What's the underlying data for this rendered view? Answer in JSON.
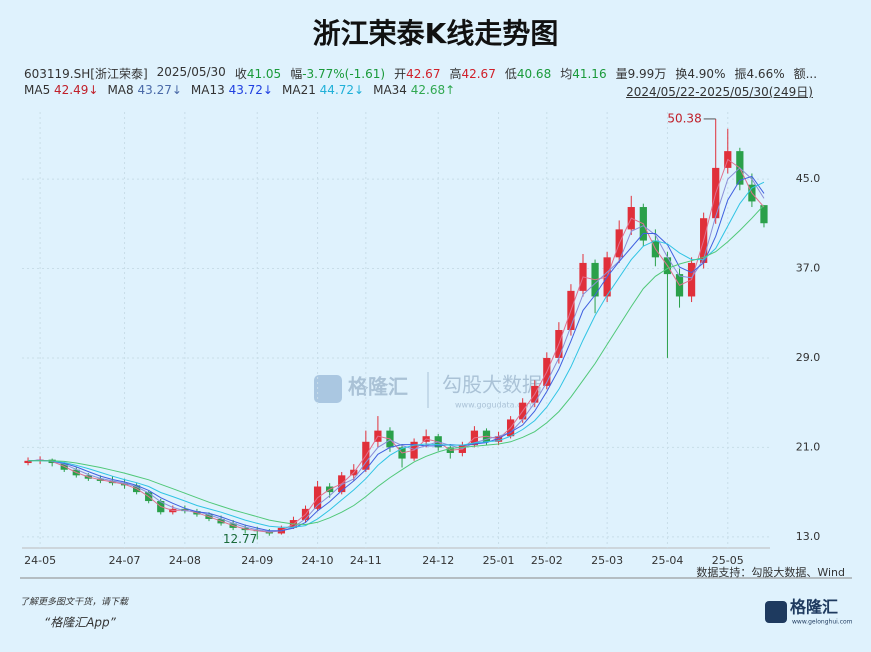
{
  "chart_data": {
    "type": "candlestick",
    "title": "浙江荣泰K线走势图",
    "info": [
      {
        "label": "603119.SH[浙江荣泰]",
        "color": "#333"
      },
      {
        "label": "2025/05/30",
        "color": "#333"
      },
      {
        "label": "收",
        "value": "41.05",
        "color": "#1a9a3a"
      },
      {
        "label": "幅",
        "value": "-3.77%(-1.61)",
        "color": "#1a9a3a"
      },
      {
        "label": "开",
        "value": "42.67",
        "color": "#d0202a"
      },
      {
        "label": "高",
        "value": "42.67",
        "color": "#d0202a"
      },
      {
        "label": "低",
        "value": "40.68",
        "color": "#1a9a3a"
      },
      {
        "label": "均",
        "value": "41.16",
        "color": "#1a9a3a"
      },
      {
        "label": "量",
        "value": "9.99万",
        "color": "#333"
      },
      {
        "label": "换",
        "value": "4.90%",
        "color": "#333"
      },
      {
        "label": "振",
        "value": "4.66%",
        "color": "#333"
      },
      {
        "label": "额...",
        "color": "#333"
      }
    ],
    "date_range": "2024/05/22-2025/05/30(249日)",
    "source": "数据支持：勾股大数据、Wind",
    "footer": [
      "了解更多图文干货，请下载",
      "“格隆汇App”"
    ],
    "logo": "格隆汇",
    "logo_url": "www.gelonghui.com",
    "watermark": [
      "格隆汇",
      "勾股大数据",
      "www.gogudata.com"
    ],
    "high_label": "50.38",
    "low_label": "12.77",
    "up_color": "#e0303a",
    "down_color": "#2aa04a",
    "ylim": [
      12,
      51
    ],
    "yticks": [
      {
        "value": 13,
        "label": "13.0"
      },
      {
        "value": 21,
        "label": "21.0"
      },
      {
        "value": 29,
        "label": "29.0"
      },
      {
        "value": 37,
        "label": "37.0"
      },
      {
        "value": 45,
        "label": "45.0"
      }
    ],
    "grid": true,
    "categories": [
      null,
      "24-05",
      null,
      null,
      null,
      null,
      null,
      null,
      "24-07",
      null,
      null,
      null,
      null,
      "24-08",
      null,
      null,
      null,
      null,
      null,
      "24-09",
      null,
      null,
      null,
      null,
      "24-10",
      null,
      null,
      null,
      "24-11",
      null,
      null,
      null,
      null,
      null,
      "24-12",
      null,
      null,
      null,
      null,
      "25-01",
      null,
      null,
      null,
      "25-02",
      null,
      null,
      null,
      null,
      "25-03",
      null,
      null,
      null,
      null,
      "25-04",
      null,
      null,
      null,
      null,
      "25-05",
      null,
      null,
      null
    ],
    "open": [
      19.6,
      19.8,
      19.9,
      19.6,
      19.0,
      18.5,
      18.2,
      18.0,
      17.8,
      17.6,
      17.0,
      16.2,
      15.2,
      15.5,
      15.3,
      15.0,
      14.6,
      14.2,
      13.8,
      13.6,
      13.5,
      13.3,
      13.8,
      14.5,
      15.5,
      17.5,
      17.0,
      18.5,
      19.0,
      21.5,
      22.5,
      21.0,
      20.0,
      21.5,
      22.0,
      21.0,
      20.5,
      21.2,
      22.5,
      21.5,
      22.0,
      23.5,
      25.0,
      26.5,
      29.0,
      31.5,
      35.0,
      37.5,
      34.5,
      38.0,
      40.5,
      42.5,
      39.5,
      38.0,
      36.5,
      34.5,
      37.5,
      41.5,
      46.0,
      47.5,
      44.5,
      42.67
    ],
    "high": [
      20.1,
      20.2,
      20.0,
      19.7,
      19.2,
      18.7,
      18.5,
      18.4,
      18.2,
      17.8,
      17.1,
      16.4,
      15.8,
      15.8,
      15.5,
      15.2,
      14.9,
      14.5,
      14.1,
      13.9,
      13.7,
      14.0,
      14.8,
      15.8,
      18.0,
      17.8,
      18.8,
      19.5,
      22.5,
      23.8,
      22.8,
      21.3,
      21.8,
      22.6,
      22.2,
      21.3,
      21.5,
      22.9,
      22.7,
      22.4,
      23.8,
      25.4,
      27.0,
      29.5,
      32.2,
      35.6,
      38.3,
      37.8,
      38.5,
      41.3,
      43.5,
      42.8,
      40.5,
      38.5,
      37.0,
      38.0,
      42.0,
      50.38,
      49.5,
      47.8,
      45.5,
      42.67
    ],
    "low": [
      19.4,
      19.5,
      19.3,
      18.8,
      18.3,
      18.0,
      17.8,
      17.6,
      17.3,
      16.8,
      16.0,
      15.0,
      15.0,
      15.1,
      14.8,
      14.4,
      14.0,
      13.6,
      13.3,
      12.77,
      13.1,
      13.2,
      13.7,
      14.3,
      15.3,
      16.5,
      16.8,
      18.0,
      18.8,
      21.0,
      20.6,
      19.2,
      19.8,
      21.0,
      20.7,
      20.0,
      20.2,
      21.0,
      21.2,
      21.2,
      21.8,
      23.2,
      24.6,
      26.2,
      28.5,
      31.0,
      34.5,
      33.0,
      34.0,
      37.5,
      40.0,
      39.0,
      37.2,
      29.0,
      33.5,
      34.0,
      37.0,
      41.0,
      45.5,
      44.0,
      42.5,
      40.68
    ],
    "close": [
      19.8,
      19.9,
      19.6,
      19.0,
      18.5,
      18.2,
      18.0,
      17.8,
      17.6,
      17.0,
      16.2,
      15.2,
      15.5,
      15.3,
      15.0,
      14.6,
      14.2,
      13.8,
      13.6,
      13.5,
      13.3,
      13.8,
      14.5,
      15.5,
      17.5,
      17.0,
      18.5,
      19.0,
      21.5,
      22.5,
      21.0,
      20.0,
      21.5,
      22.0,
      21.0,
      20.5,
      21.2,
      22.5,
      21.5,
      22.0,
      23.5,
      25.0,
      26.5,
      29.0,
      31.5,
      35.0,
      37.5,
      34.5,
      38.0,
      40.5,
      42.5,
      39.5,
      38.0,
      36.5,
      34.5,
      37.5,
      41.5,
      46.0,
      47.5,
      44.5,
      43.0,
      41.05
    ],
    "series": [
      {
        "name": "MA5",
        "color": "#e0708e",
        "label_color": "#c0202a",
        "current": 42.49,
        "current_label": "42.49↓",
        "values": [
          19.8,
          19.85,
          19.75,
          19.3,
          18.75,
          18.35,
          18.1,
          17.9,
          17.7,
          17.3,
          16.6,
          15.7,
          15.35,
          15.4,
          15.15,
          14.8,
          14.4,
          14.0,
          13.7,
          13.55,
          13.4,
          13.55,
          14.15,
          15.0,
          16.5,
          17.25,
          17.75,
          18.75,
          20.25,
          22.0,
          21.75,
          20.5,
          20.75,
          21.75,
          21.5,
          20.75,
          20.85,
          21.85,
          22.0,
          21.75,
          22.75,
          24.25,
          25.75,
          27.75,
          30.25,
          33.25,
          36.25,
          36.0,
          36.25,
          39.25,
          41.5,
          41.0,
          38.75,
          37.25,
          35.5,
          36.0,
          39.5,
          43.75,
          46.75,
          46.0,
          43.75,
          42.49
        ]
      },
      {
        "name": "MA8",
        "color": "#8a8fd8",
        "label_color": "#4a6aa8",
        "current": 43.27,
        "current_label": "43.27↓",
        "values": [
          19.8,
          19.85,
          19.77,
          19.5,
          19.03,
          18.57,
          18.23,
          18.0,
          17.8,
          17.47,
          16.93,
          16.13,
          15.63,
          15.33,
          15.27,
          14.97,
          14.6,
          14.2,
          13.87,
          13.63,
          13.47,
          13.53,
          13.87,
          14.6,
          15.83,
          16.67,
          17.67,
          18.17,
          19.67,
          21.0,
          21.67,
          21.17,
          20.83,
          21.17,
          21.5,
          21.17,
          20.9,
          21.4,
          21.73,
          22.0,
          22.33,
          23.5,
          25.0,
          26.83,
          29.0,
          31.83,
          34.67,
          35.67,
          36.67,
          37.67,
          40.33,
          40.83,
          40.0,
          38.0,
          36.33,
          36.17,
          37.83,
          41.67,
          45.0,
          46.0,
          45.0,
          43.27
        ]
      },
      {
        "name": "MA13",
        "color": "#4060e0",
        "label_color": "#2040e0",
        "current": 43.72,
        "current_label": "43.72↓",
        "values": [
          19.8,
          19.85,
          19.77,
          19.58,
          19.25,
          18.83,
          18.43,
          18.13,
          17.9,
          17.6,
          17.15,
          16.5,
          16.0,
          15.55,
          15.25,
          15.1,
          14.78,
          14.4,
          14.05,
          13.78,
          13.55,
          13.55,
          13.78,
          14.28,
          15.33,
          16.13,
          17.13,
          18.0,
          19.0,
          20.38,
          21.0,
          21.25,
          21.25,
          21.13,
          21.13,
          21.25,
          21.18,
          21.3,
          21.43,
          21.8,
          22.38,
          23.0,
          24.25,
          26.0,
          28.0,
          30.5,
          33.25,
          34.63,
          36.25,
          37.63,
          38.88,
          40.13,
          40.13,
          39.13,
          37.13,
          36.63,
          37.5,
          39.88,
          43.13,
          44.88,
          45.25,
          43.72
        ]
      },
      {
        "name": "MA21",
        "color": "#30c4e4",
        "label_color": "#20b0d8",
        "current": 44.72,
        "current_label": "44.72↓",
        "values": [
          19.8,
          19.8,
          19.78,
          19.65,
          19.4,
          19.1,
          18.76,
          18.42,
          18.12,
          17.84,
          17.5,
          16.96,
          16.6,
          16.2,
          15.8,
          15.5,
          15.2,
          14.85,
          14.5,
          14.2,
          13.95,
          13.85,
          13.85,
          14.0,
          14.6,
          15.4,
          16.3,
          17.2,
          18.2,
          19.4,
          20.3,
          20.9,
          21.2,
          21.3,
          21.25,
          21.2,
          21.2,
          21.4,
          21.5,
          21.6,
          22.0,
          22.6,
          23.4,
          24.6,
          26.2,
          28.2,
          30.6,
          32.8,
          34.6,
          36.2,
          37.8,
          39.0,
          39.5,
          39.2,
          38.4,
          37.8,
          37.8,
          38.8,
          40.8,
          42.8,
          44.2,
          44.72
        ]
      },
      {
        "name": "MA34",
        "color": "#50c878",
        "label_color": "#30a850",
        "current": 42.68,
        "current_label": "42.68↑",
        "values": [
          19.8,
          19.8,
          19.8,
          19.75,
          19.6,
          19.4,
          19.2,
          18.95,
          18.7,
          18.4,
          18.1,
          17.7,
          17.3,
          16.9,
          16.5,
          16.1,
          15.75,
          15.4,
          15.1,
          14.8,
          14.5,
          14.3,
          14.15,
          14.1,
          14.3,
          14.7,
          15.2,
          15.8,
          16.6,
          17.5,
          18.3,
          19.0,
          19.7,
          20.2,
          20.6,
          20.9,
          21.0,
          21.1,
          21.2,
          21.3,
          21.5,
          21.9,
          22.4,
          23.2,
          24.2,
          25.5,
          27.0,
          28.5,
          30.2,
          31.9,
          33.6,
          35.2,
          36.3,
          37.0,
          37.4,
          37.7,
          38.0,
          38.5,
          39.4,
          40.4,
          41.5,
          42.68
        ]
      }
    ]
  }
}
